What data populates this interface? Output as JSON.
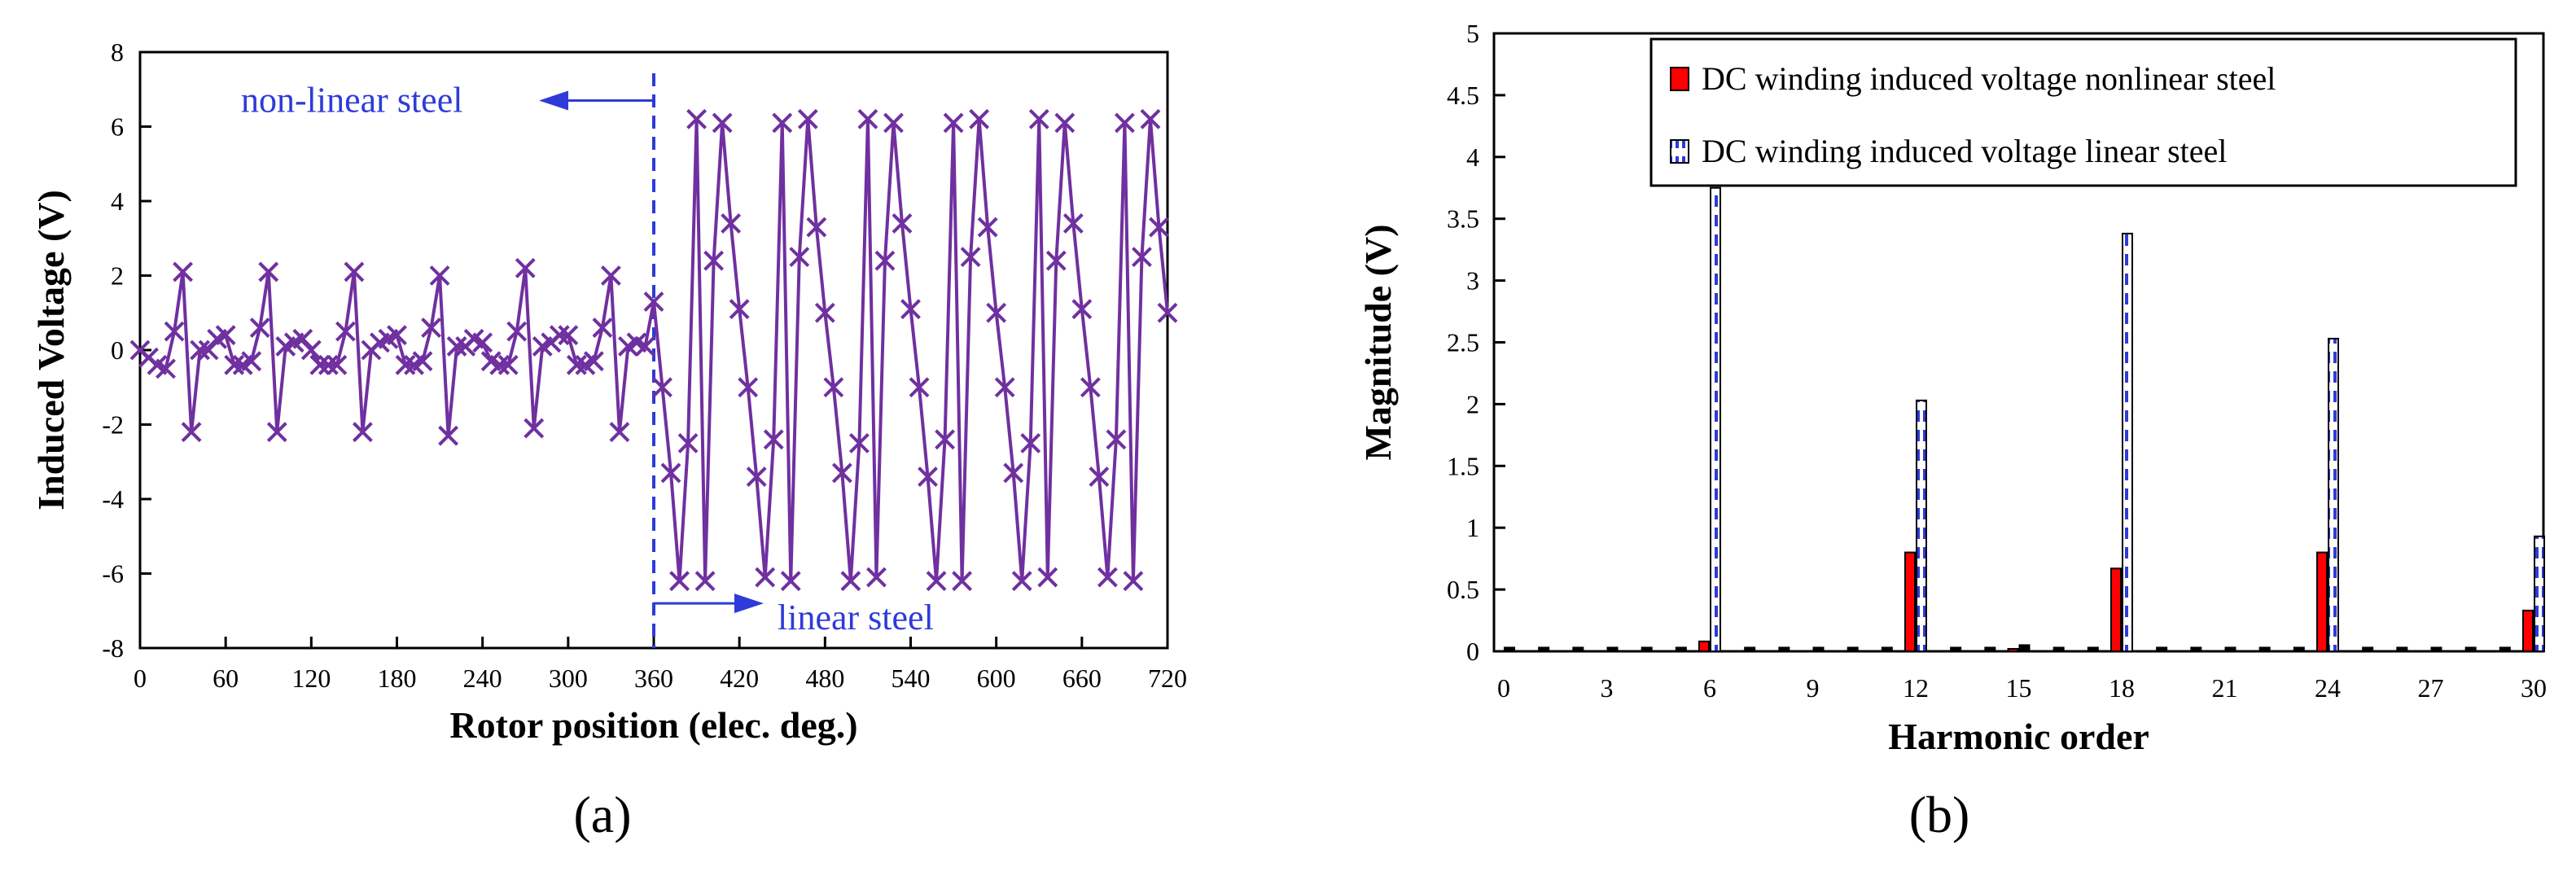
{
  "chart_data": [
    {
      "type": "line",
      "panel_label": "(a)",
      "xlabel": "Rotor position (elec. deg.)",
      "ylabel": "Induced Voltage (V)",
      "xlim": [
        0,
        720
      ],
      "ylim": [
        -8,
        8
      ],
      "xticks": [
        "0",
        "60",
        "120",
        "180",
        "240",
        "300",
        "360",
        "420",
        "480",
        "540",
        "600",
        "660",
        "720"
      ],
      "yticks": [
        "-8",
        "-6",
        "-4",
        "-2",
        "0",
        "2",
        "4",
        "6",
        "8"
      ],
      "annotations": {
        "left_text": "non-linear steel",
        "right_text": "linear steel",
        "divider_x": 360
      },
      "series": [
        {
          "name": "Induced voltage",
          "color": "#7030A0",
          "marker": "x",
          "x": [
            0,
            6,
            12,
            18,
            24,
            30,
            36,
            42,
            48,
            54,
            60,
            66,
            72,
            78,
            84,
            90,
            96,
            102,
            108,
            114,
            120,
            126,
            132,
            138,
            144,
            150,
            156,
            162,
            168,
            174,
            180,
            186,
            192,
            198,
            204,
            210,
            216,
            222,
            228,
            234,
            240,
            246,
            252,
            258,
            264,
            270,
            276,
            282,
            288,
            294,
            300,
            306,
            312,
            318,
            324,
            330,
            336,
            342,
            348,
            354,
            360,
            366,
            372,
            378,
            384,
            390,
            396,
            402,
            408,
            414,
            420,
            426,
            432,
            438,
            444,
            450,
            456,
            462,
            468,
            474,
            480,
            486,
            492,
            498,
            504,
            510,
            516,
            522,
            528,
            534,
            540,
            546,
            552,
            558,
            564,
            570,
            576,
            582,
            588,
            594,
            600,
            606,
            612,
            618,
            624,
            630,
            636,
            642,
            648,
            654,
            660,
            666,
            672,
            678,
            684,
            690,
            696,
            702,
            708,
            714,
            720
          ],
          "y": [
            0,
            -0.2,
            -0.4,
            -0.5,
            0.5,
            2.1,
            -2.2,
            0,
            0,
            0.3,
            0.4,
            -0.4,
            -0.4,
            -0.3,
            0.6,
            2.1,
            -2.2,
            0.1,
            0.2,
            0.3,
            0,
            -0.4,
            -0.4,
            -0.4,
            0.5,
            2.1,
            -2.2,
            0,
            0.2,
            0.3,
            0.4,
            -0.4,
            -0.4,
            -0.3,
            0.6,
            2,
            -2.3,
            0.1,
            0.1,
            0.3,
            0.2,
            -0.3,
            -0.4,
            -0.4,
            0.5,
            2.2,
            -2.1,
            0.1,
            0.2,
            0.4,
            0.4,
            -0.4,
            -0.4,
            -0.3,
            0.6,
            2,
            -2.2,
            0.1,
            0.2,
            0.1,
            1.3,
            -1,
            -3.3,
            -6.2,
            -2.5,
            6.2,
            -6.2,
            2.4,
            6.1,
            3.4,
            1.1,
            -1,
            -3.4,
            -6.1,
            -2.4,
            6.1,
            -6.2,
            2.5,
            6.2,
            3.3,
            1,
            -1,
            -3.3,
            -6.2,
            -2.5,
            6.2,
            -6.1,
            2.4,
            6.1,
            3.4,
            1.1,
            -1,
            -3.4,
            -6.2,
            -2.4,
            6.1,
            -6.2,
            2.5,
            6.2,
            3.3,
            1,
            -1,
            -3.3,
            -6.2,
            -2.5,
            6.2,
            -6.1,
            2.4,
            6.1,
            3.4,
            1.1,
            -1,
            -3.4,
            -6.1,
            -2.4,
            6.1,
            -6.2,
            2.5,
            6.2,
            3.3,
            1
          ]
        }
      ]
    },
    {
      "type": "bar",
      "panel_label": "(b)",
      "xlabel": "Harmonic order",
      "ylabel": "Magnitude (V)",
      "xlim": [
        0,
        30
      ],
      "ylim": [
        0,
        5
      ],
      "xticks": [
        "0",
        "3",
        "6",
        "9",
        "12",
        "15",
        "18",
        "21",
        "24",
        "27",
        "30"
      ],
      "yticks": [
        "0",
        "0.5",
        "1",
        "1.5",
        "2",
        "2.5",
        "3",
        "3.5",
        "4",
        "4.5",
        "5"
      ],
      "categories": [
        0,
        1,
        2,
        3,
        4,
        5,
        6,
        7,
        8,
        9,
        10,
        11,
        12,
        13,
        14,
        15,
        16,
        17,
        18,
        19,
        20,
        21,
        22,
        23,
        24,
        25,
        26,
        27,
        28,
        29,
        30
      ],
      "legend_position": "top-right",
      "series": [
        {
          "name": "DC winding induced voltage nonlinear steel",
          "color": "#FF0000",
          "values": [
            0,
            0,
            0,
            0,
            0,
            0,
            0.08,
            0,
            0,
            0,
            0,
            0,
            0.8,
            0,
            0,
            0.02,
            0,
            0,
            0.67,
            0,
            0,
            0,
            0,
            0,
            0.8,
            0,
            0,
            0,
            0,
            0,
            0.33
          ]
        },
        {
          "name": "DC winding induced voltage linear steel",
          "color": "#2E3BD8",
          "pattern": "dashed",
          "values": [
            0.03,
            0.03,
            0.03,
            0.03,
            0.03,
            0.03,
            3.75,
            0.03,
            0.03,
            0.03,
            0.03,
            0.03,
            2.03,
            0.03,
            0.03,
            0.05,
            0.03,
            0.03,
            3.38,
            0.03,
            0.03,
            0.03,
            0.03,
            0.03,
            2.53,
            0.03,
            0.03,
            0.03,
            0.03,
            0.03,
            0.93
          ]
        }
      ]
    }
  ]
}
